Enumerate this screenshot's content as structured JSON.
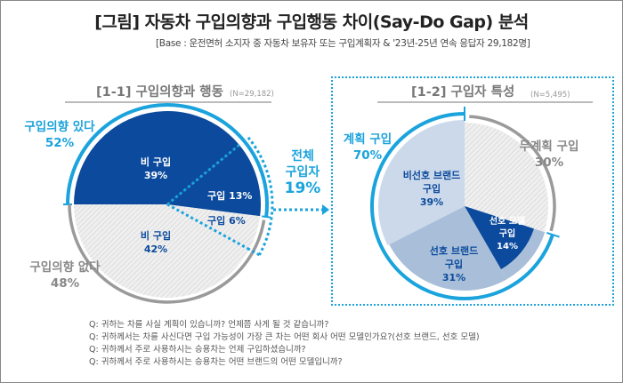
{
  "title": "[그림] 자동차 구입의향과 구입행동 차이(Say-Do Gap) 분석",
  "subtitle": "[Base : 운전면허 소지자 중 자동차 보유자 또는 구입계획자 & '23년-25년 연속 응답자 29,182명]",
  "colors": {
    "dark_blue": "#0b4a9c",
    "cyan": "#1aa3dc",
    "medium_blue": "#a9bfd9",
    "light_blue": "#cbd9ea",
    "gray": "#9a9a9a",
    "hatch": "#e6e6e6"
  },
  "chart_data": [
    {
      "type": "pie",
      "title": "[1-1] 구입의향과 행동",
      "n_label": "(N=29,182)",
      "slices": [
        {
          "group": "구입의향 있다",
          "label": "비 구입",
          "value": 39,
          "value_label": "39%"
        },
        {
          "group": "구입의향 있다",
          "label": "구입",
          "value": 13,
          "value_label": "13%"
        },
        {
          "group": "구입의향 없다",
          "label": "구입",
          "value": 6,
          "value_label": "6%"
        },
        {
          "group": "구입의향 없다",
          "label": "비 구입",
          "value": 42,
          "value_label": "42%"
        }
      ],
      "groups": [
        {
          "label": "구입의향 있다",
          "value_label": "52%"
        },
        {
          "label": "구입의향 없다",
          "value_label": "48%"
        }
      ],
      "callout": {
        "line1": "전체",
        "line2": "구입자",
        "value_label": "19%"
      }
    },
    {
      "type": "pie",
      "title": "[1-2] 구입자 특성",
      "n_label": "(N=5,495)",
      "slices": [
        {
          "group": "무계획 구입",
          "label": "무계획 구입",
          "value": 30,
          "value_label": "30%"
        },
        {
          "group": "계획 구입",
          "label1": "선호 모델",
          "label2": "구입",
          "value": 14,
          "value_label": "14%"
        },
        {
          "group": "계획 구입",
          "label1": "선호 브랜드",
          "label2": "구입",
          "value": 31,
          "value_label": "31%"
        },
        {
          "group": "계획 구입",
          "label1": "비선호 브랜드",
          "label2": "구입",
          "value": 39,
          "value_label": "39%"
        }
      ],
      "groups": [
        {
          "label": "계획 구입",
          "value_label": "70%"
        },
        {
          "label": "무계획 구입",
          "value_label": "30%"
        }
      ]
    }
  ],
  "questions": [
    "Q: 귀하는 차를 사실 계획이 있습니까? 언제쯤 사게 될 것 같습니까?",
    "Q: 귀하께서는 차를 사신다면 구입 가능성이 가장 큰 차는 어떤 회사 어떤 모델인가요?(선호 브랜드, 선호 모델)",
    "Q: 귀하께서 주로 사용하시는 승용차는 언제 구입하셨습니까?",
    "Q: 귀하께서 주로 사용하시는 승용차는 어떤 브랜드의 어떤 모델입니까?"
  ]
}
